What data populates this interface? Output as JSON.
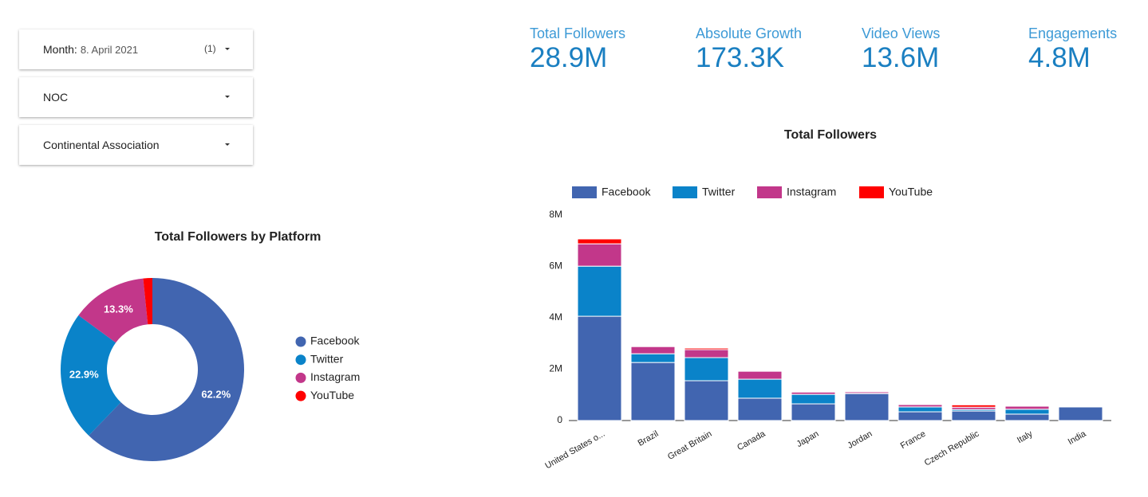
{
  "filters": [
    {
      "label": "Month:",
      "value": "8. April 2021",
      "count": "(1)"
    },
    {
      "label": "NOC"
    },
    {
      "label": "Continental Association"
    }
  ],
  "scorecards": [
    {
      "label": "Total Followers",
      "value": "28.9M"
    },
    {
      "label": "Absolute Growth",
      "value": "173.3K"
    },
    {
      "label": "Video Views",
      "value": "13.6M"
    },
    {
      "label": "Engagements",
      "value": "4.8M"
    }
  ],
  "chart_data": [
    {
      "type": "pie",
      "title": "Total Followers by Platform",
      "categories": [
        "Facebook",
        "Twitter",
        "Instagram",
        "YouTube"
      ],
      "values": [
        62.2,
        22.9,
        13.3,
        1.6
      ],
      "value_labels": [
        "62.2%",
        "22.9%",
        "13.3%",
        null
      ],
      "colors": [
        "#4165b0",
        "#0a83c9",
        "#c2378a",
        "#ff0000"
      ],
      "donut": true
    },
    {
      "type": "bar",
      "stacked": true,
      "title": "Total Followers",
      "categories": [
        "United States o...",
        "Brazil",
        "Great Britain",
        "Canada",
        "Japan",
        "Jordan",
        "France",
        "Czech Republic",
        "Italy",
        "India"
      ],
      "series": [
        {
          "name": "Facebook",
          "color": "#4165b0",
          "values": [
            4060000,
            2260000,
            1550000,
            870000,
            650000,
            1050000,
            340000,
            370000,
            250000,
            530000
          ]
        },
        {
          "name": "Twitter",
          "color": "#0a83c9",
          "values": [
            1950000,
            340000,
            900000,
            740000,
            370000,
            10000,
            190000,
            60000,
            190000,
            10000
          ]
        },
        {
          "name": "Instagram",
          "color": "#c2378a",
          "values": [
            870000,
            280000,
            310000,
            310000,
            90000,
            60000,
            90000,
            90000,
            120000,
            30000
          ]
        },
        {
          "name": "YouTube",
          "color": "#ff0000",
          "values": [
            190000,
            20000,
            60000,
            30000,
            30000,
            10000,
            20000,
            90000,
            30000,
            10000
          ]
        }
      ],
      "ylim": [
        0,
        8000000
      ],
      "yticks": [
        0,
        {
          "value": 2000000,
          "label": "2M"
        },
        {
          "value": 4000000,
          "label": "4M"
        },
        {
          "value": 6000000,
          "label": "6M"
        },
        {
          "value": 8000000,
          "label": "8M"
        }
      ],
      "legend": "top"
    }
  ]
}
